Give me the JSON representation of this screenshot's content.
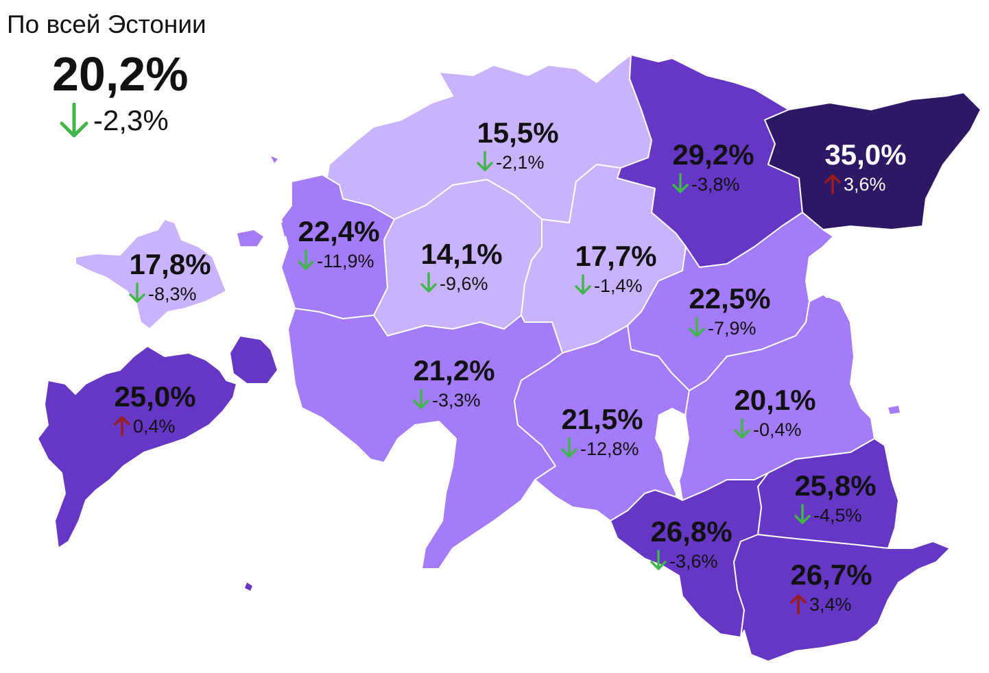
{
  "summary": {
    "title": "По всей Эстонии",
    "value": "20,2%",
    "change": "-2,3%",
    "direction": "down"
  },
  "colors": {
    "shade1": "#c9b3ff",
    "shade2": "#a47bf8",
    "shade3": "#6637c4",
    "shade4": "#2e1866",
    "up_arrow": "#9b1c1c",
    "down_arrow": "#41b649",
    "dark_text": "#111111",
    "light_text": "#ffffff"
  },
  "regions": [
    {
      "id": "harju",
      "value": "15,5%",
      "change": "-2,1%",
      "direction": "down",
      "shade": "shade1"
    },
    {
      "id": "laane-viru",
      "value": "29,2%",
      "change": "-3,8%",
      "direction": "down",
      "shade": "shade3"
    },
    {
      "id": "ida-viru",
      "value": "35,0%",
      "change": "3,6%",
      "direction": "up",
      "shade": "shade4"
    },
    {
      "id": "hiiu",
      "value": "17,8%",
      "change": "-8,3%",
      "direction": "down",
      "shade": "shade1"
    },
    {
      "id": "laane",
      "value": "22,4%",
      "change": "-11,9%",
      "direction": "down",
      "shade": "shade2"
    },
    {
      "id": "rapla",
      "value": "14,1%",
      "change": "-9,6%",
      "direction": "down",
      "shade": "shade1"
    },
    {
      "id": "jarva",
      "value": "17,7%",
      "change": "-1,4%",
      "direction": "down",
      "shade": "shade1"
    },
    {
      "id": "jogeva",
      "value": "22,5%",
      "change": "-7,9%",
      "direction": "down",
      "shade": "shade2"
    },
    {
      "id": "saare",
      "value": "25,0%",
      "change": "0,4%",
      "direction": "up",
      "shade": "shade3"
    },
    {
      "id": "parnu",
      "value": "21,2%",
      "change": "-3,3%",
      "direction": "down",
      "shade": "shade2"
    },
    {
      "id": "viljandi",
      "value": "21,5%",
      "change": "-12,8%",
      "direction": "down",
      "shade": "shade2"
    },
    {
      "id": "tartu",
      "value": "20,1%",
      "change": "-0,4%",
      "direction": "down",
      "shade": "shade2"
    },
    {
      "id": "polva",
      "value": "25,8%",
      "change": "-4,5%",
      "direction": "down",
      "shade": "shade3"
    },
    {
      "id": "valga",
      "value": "26,8%",
      "change": "-3,6%",
      "direction": "down",
      "shade": "shade3"
    },
    {
      "id": "voru",
      "value": "26,7%",
      "change": "3,4%",
      "direction": "up",
      "shade": "shade3"
    }
  ]
}
